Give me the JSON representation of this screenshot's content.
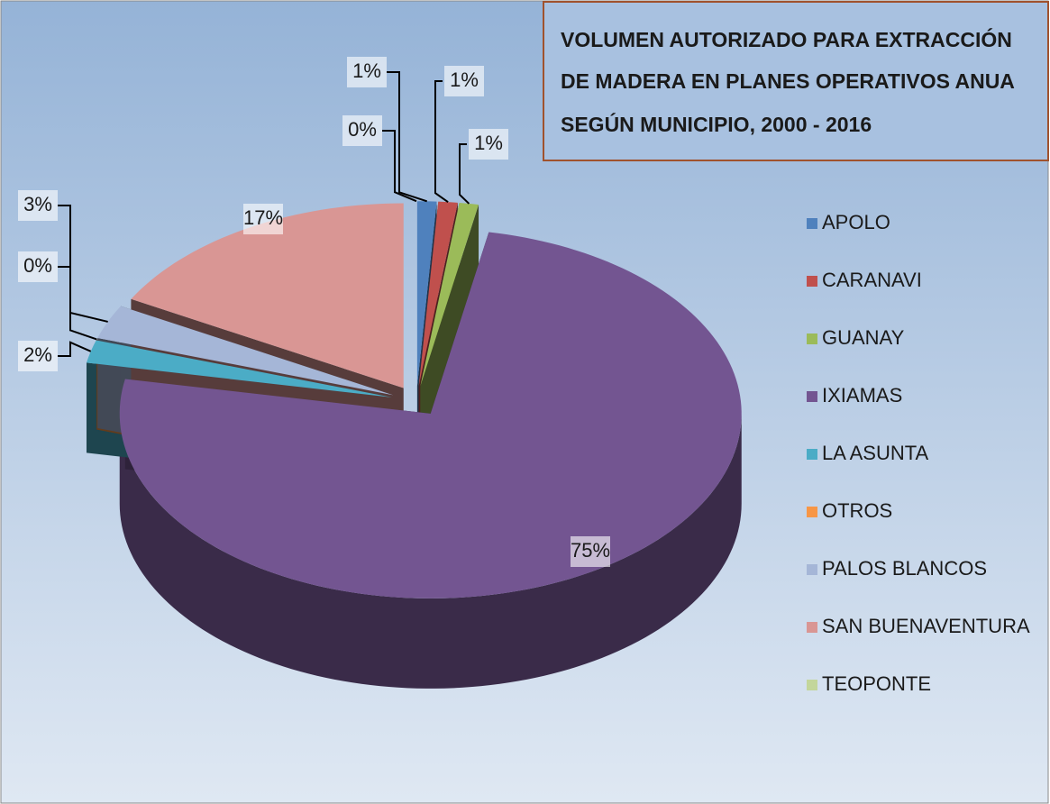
{
  "chart_data": {
    "type": "pie3d",
    "title": [
      "VOLUMEN AUTORIZADO PARA EXTRACCIÓN",
      "DE MADERA EN PLANES OPERATIVOS ANUA",
      "SEGÚN MUNICIPIO, 2000 - 2016"
    ],
    "categories": [
      "APOLO",
      "CARANAVI",
      "GUANAY",
      "IXIAMAS",
      "LA ASUNTA",
      "OTROS",
      "PALOS BLANCOS",
      "SAN BUENAVENTURA",
      "TEOPONTE"
    ],
    "values": [
      1,
      1,
      1,
      75,
      2,
      0,
      3,
      17,
      0
    ],
    "value_labels": [
      "1%",
      "1%",
      "1%",
      "75%",
      "2%",
      "0%",
      "3%",
      "17%",
      "0%"
    ],
    "colors": [
      "#4f81bd",
      "#c0504d",
      "#9bbb59",
      "#735591",
      "#4bacc6",
      "#f79646",
      "#a5b6d7",
      "#d99694",
      "#c3d69b"
    ],
    "legend": "right"
  }
}
